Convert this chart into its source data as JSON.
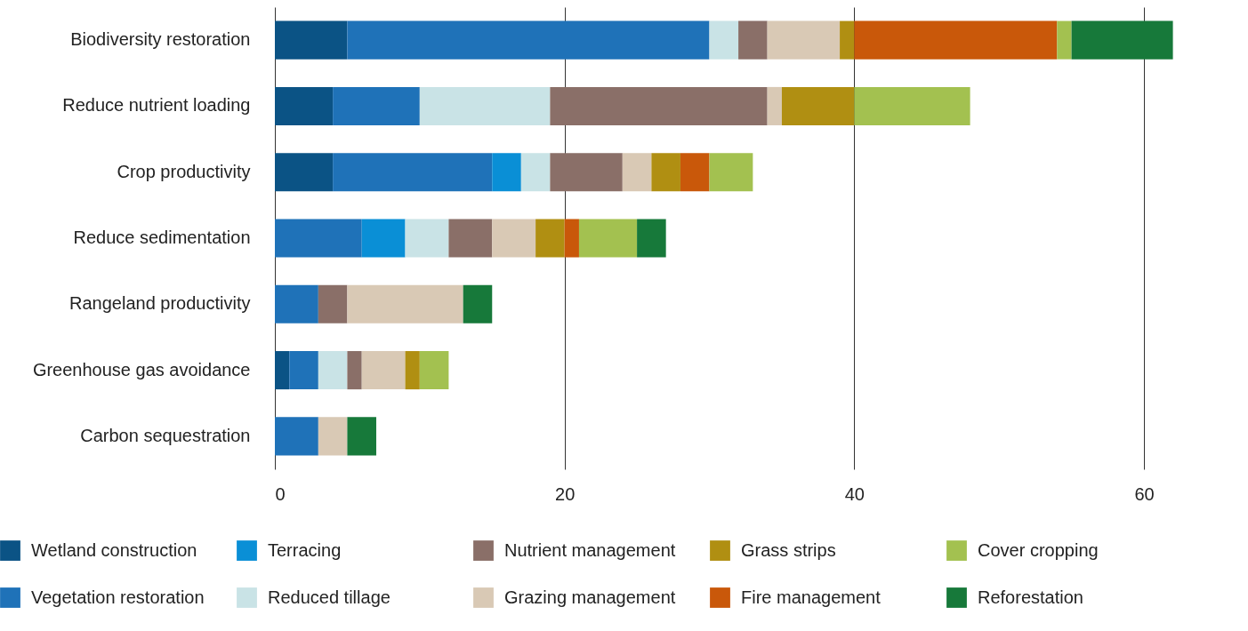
{
  "chart_data": {
    "type": "bar",
    "orientation": "horizontal",
    "stacked": true,
    "categories": [
      "Biodiversity restoration",
      "Reduce nutrient loading",
      "Crop productivity",
      "Reduce sedimentation",
      "Rangeland productivity",
      "Greenhouse gas avoidance",
      "Carbon sequestration"
    ],
    "xlim": [
      0,
      67
    ],
    "xticks": [
      0,
      20,
      40,
      60
    ],
    "grid": "x",
    "legend": "bottom",
    "series": [
      {
        "name": "Wetland construction",
        "color": "#0b5385",
        "values": [
          5,
          4,
          4,
          null,
          null,
          1,
          null
        ]
      },
      {
        "name": "Vegetation restoration",
        "color": "#1f72b8",
        "values": [
          25,
          6,
          11,
          6,
          3,
          2,
          3
        ]
      },
      {
        "name": "Terracing",
        "color": "#0a8fd6",
        "values": [
          null,
          null,
          2,
          3,
          null,
          null,
          null
        ]
      },
      {
        "name": "Reduced tillage",
        "color": "#c9e3e6",
        "values": [
          2,
          9,
          2,
          3,
          null,
          2,
          null
        ]
      },
      {
        "name": "Nutrient management",
        "color": "#8a6f68",
        "values": [
          2,
          15,
          5,
          3,
          2,
          1,
          null
        ]
      },
      {
        "name": "Grazing management",
        "color": "#d9c9b5",
        "values": [
          5,
          1,
          2,
          3,
          8,
          3,
          2
        ]
      },
      {
        "name": "Grass strips",
        "color": "#b08f12",
        "values": [
          1,
          5,
          2,
          2,
          null,
          1,
          null
        ]
      },
      {
        "name": "Fire management",
        "color": "#c9580a",
        "values": [
          14,
          null,
          2,
          1,
          null,
          null,
          null
        ]
      },
      {
        "name": "Cover cropping",
        "color": "#a3c150",
        "values": [
          1,
          8,
          3,
          4,
          null,
          2,
          null
        ]
      },
      {
        "name": "Reforestation",
        "color": "#17793a",
        "values": [
          7,
          null,
          null,
          2,
          2,
          null,
          2
        ]
      }
    ]
  }
}
